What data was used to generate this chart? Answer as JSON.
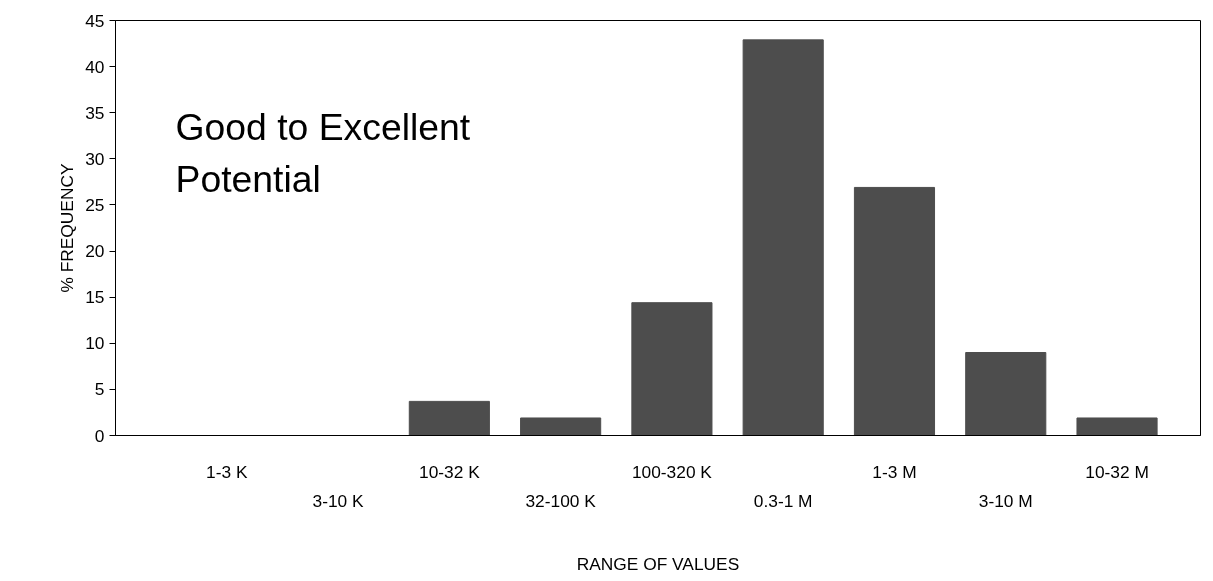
{
  "chart_data": {
    "type": "bar",
    "xlabel": "RANGE OF VALUES",
    "ylabel": "% FREQUENCY",
    "categories": [
      "1-3 K",
      "3-10 K",
      "10-32 K",
      "32-100 K",
      "100-320 K",
      "0.3-1 M",
      "1-3 M",
      "3-10 M",
      "10-32 M"
    ],
    "values": [
      0,
      0,
      3.7,
      1.9,
      14.4,
      42.9,
      26.9,
      9.0,
      1.9
    ],
    "color": "#4d4d4d",
    "ylim": [
      0,
      45
    ],
    "yticks": [
      0,
      5,
      10,
      15,
      20,
      25,
      30,
      35,
      40,
      45
    ],
    "grid": false,
    "annotations": [
      "Good to Excellent\nPotential"
    ]
  }
}
